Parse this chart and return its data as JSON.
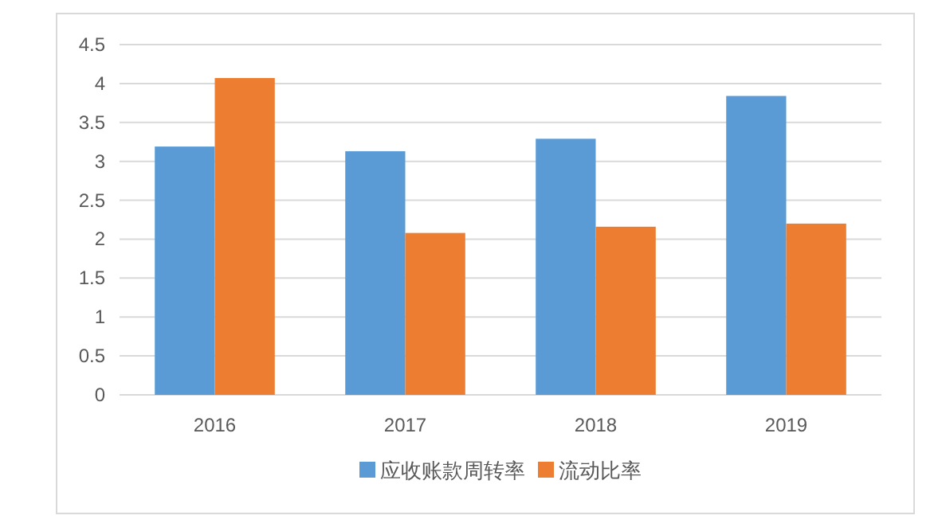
{
  "chart_data": {
    "type": "bar",
    "categories": [
      "2016",
      "2017",
      "2018",
      "2019"
    ],
    "series": [
      {
        "name": "应收账款周转率",
        "color": "#5b9bd5",
        "values": [
          3.19,
          3.13,
          3.29,
          3.84
        ]
      },
      {
        "name": "流动比率",
        "color": "#ed7d31",
        "values": [
          4.07,
          2.08,
          2.16,
          2.2
        ]
      }
    ],
    "ylim": [
      0,
      4.5
    ],
    "yticks": [
      0,
      0.5,
      1,
      1.5,
      2,
      2.5,
      3,
      3.5,
      4,
      4.5
    ],
    "grid": "y",
    "legend": "bottom"
  }
}
